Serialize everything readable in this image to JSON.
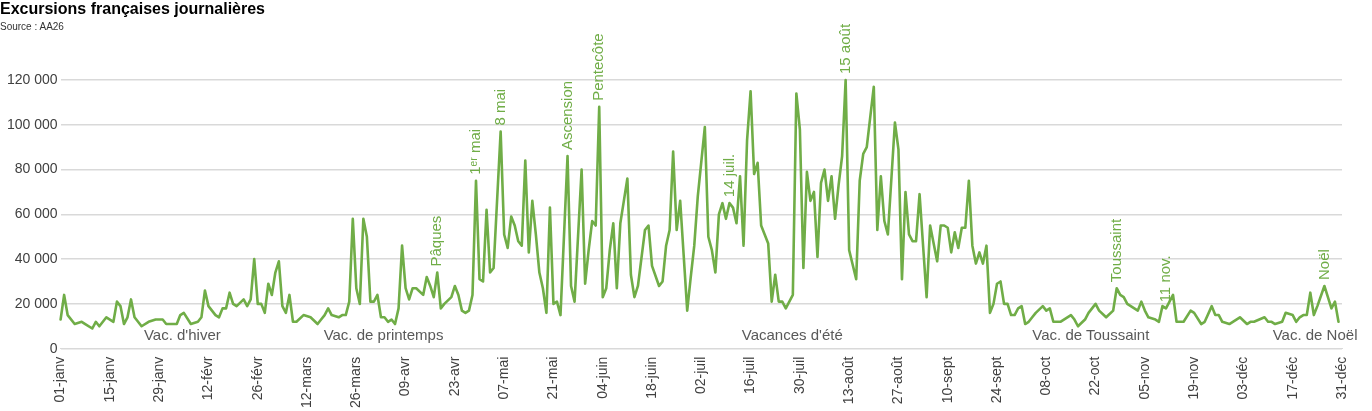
{
  "chart_data": {
    "type": "line",
    "title": "Excursions françaises journalières",
    "annotations": [
      "Source : AA26",
      {
        "text": "Pâques",
        "x": "--04-18",
        "y": 34000
      },
      {
        "text": "1ᵉʳ mai",
        "x": "--04-29",
        "y": 75000
      },
      {
        "text": "8 mai",
        "x": "--05-06",
        "y": 97000
      },
      {
        "text": "Ascension",
        "x": "--05-25",
        "y": 86000
      },
      {
        "text": "Pentecôte",
        "x": "--06-03",
        "y": 108000
      },
      {
        "text": "14 juil.",
        "x": "--07-10",
        "y": 65000
      },
      {
        "text": "15 août",
        "x": "--08-12",
        "y": 120000
      },
      {
        "text": "Toussaint",
        "x": "--10-28",
        "y": 27000
      },
      {
        "text": "11 nov.",
        "x": "--11-11",
        "y": 18000
      },
      {
        "text": "Noël",
        "x": "--12-26",
        "y": 28000
      },
      "Vac. d'hiver",
      "Vac. de printemps",
      "Vacances d'été",
      "Vac. de Toussaint",
      "Vac. de Noël"
    ],
    "x": [
      "--01-01",
      "--01-02",
      "--01-03",
      "--01-05",
      "--01-07",
      "--01-08",
      "--01-10",
      "--01-11",
      "--01-12",
      "--01-14",
      "--01-16",
      "--01-17",
      "--01-18",
      "--01-19",
      "--01-20",
      "--01-21",
      "--01-22",
      "--01-24",
      "--01-26",
      "--01-28",
      "--01-30",
      "--01-31",
      "--02-03",
      "--02-04",
      "--02-05",
      "--02-07",
      "--02-09",
      "--02-10",
      "--02-11",
      "--02-12",
      "--02-14",
      "--02-15",
      "--02-16",
      "--02-17",
      "--02-18",
      "--02-19",
      "--02-20",
      "--02-22",
      "--02-23",
      "--02-24",
      "--02-25",
      "--02-26",
      "--02-27",
      "--02-28",
      "--03-01",
      "--03-02",
      "--03-03",
      "--03-04",
      "--03-05",
      "--03-06",
      "--03-07",
      "--03-08",
      "--03-09",
      "--03-11",
      "--03-13",
      "--03-15",
      "--03-16",
      "--03-17",
      "--03-18",
      "--03-19",
      "--03-21",
      "--03-22",
      "--03-23",
      "--03-24",
      "--03-25",
      "--03-26",
      "--03-27",
      "--03-28",
      "--03-29",
      "--03-30",
      "--03-31",
      "--04-01",
      "--04-02",
      "--04-03",
      "--04-04",
      "--04-05",
      "--04-06",
      "--04-07",
      "--04-08",
      "--04-09",
      "--04-10",
      "--04-11",
      "--04-12",
      "--04-14",
      "--04-15",
      "--04-16",
      "--04-17",
      "--04-18",
      "--04-19",
      "--04-20",
      "--04-22",
      "--04-23",
      "--04-24",
      "--04-25",
      "--04-26",
      "--04-27",
      "--04-28",
      "--04-29",
      "--04-30",
      "--05-01",
      "--05-02",
      "--05-03",
      "--05-04",
      "--05-06",
      "--05-07",
      "--05-08",
      "--05-09",
      "--05-10",
      "--05-11",
      "--05-12",
      "--05-13",
      "--05-14",
      "--05-15",
      "--05-16",
      "--05-17",
      "--05-18",
      "--05-19",
      "--05-20",
      "--05-21",
      "--05-22",
      "--05-23",
      "--05-25",
      "--05-26",
      "--05-27",
      "--05-29",
      "--05-30",
      "--05-31",
      "--06-01",
      "--06-02",
      "--06-03",
      "--06-04",
      "--06-05",
      "--06-06",
      "--06-07",
      "--06-08",
      "--06-09",
      "--06-10",
      "--06-11",
      "--06-12",
      "--06-13",
      "--06-14",
      "--06-16",
      "--06-17",
      "--06-18",
      "--06-20",
      "--06-21",
      "--06-22",
      "--06-23",
      "--06-24",
      "--06-25",
      "--06-26",
      "--06-28",
      "--06-29",
      "--06-30",
      "--07-01",
      "--07-03",
      "--07-04",
      "--07-05",
      "--07-06",
      "--07-07",
      "--07-08",
      "--07-09",
      "--07-10",
      "--07-11",
      "--07-12",
      "--07-13",
      "--07-14",
      "--07-15",
      "--07-16",
      "--07-17",
      "--07-18",
      "--07-19",
      "--07-20",
      "--07-21",
      "--07-22",
      "--07-23",
      "--07-24",
      "--07-25",
      "--07-26",
      "--07-28",
      "--07-29",
      "--07-30",
      "--07-31",
      "--08-01",
      "--08-02",
      "--08-03",
      "--08-04",
      "--08-05",
      "--08-06",
      "--08-07",
      "--08-08",
      "--08-09",
      "--08-10",
      "--08-11",
      "--08-12",
      "--08-13",
      "--08-15",
      "--08-16",
      "--08-17",
      "--08-18",
      "--08-20",
      "--08-21",
      "--08-22",
      "--08-23",
      "--08-24",
      "--08-26",
      "--08-27",
      "--08-28",
      "--08-29",
      "--08-30",
      "--08-31",
      "--09-01",
      "--09-02",
      "--09-04",
      "--09-05",
      "--09-07",
      "--09-08",
      "--09-09",
      "--09-10",
      "--09-11",
      "--09-12",
      "--09-13",
      "--09-14",
      "--09-15",
      "--09-16",
      "--09-17",
      "--09-18",
      "--09-19",
      "--09-20",
      "--09-21",
      "--09-22",
      "--09-23",
      "--09-24",
      "--09-25",
      "--09-26",
      "--09-27",
      "--09-28",
      "--09-29",
      "--09-30",
      "--10-01",
      "--10-02",
      "--10-03",
      "--10-04",
      "--10-05",
      "--10-07",
      "--10-08",
      "--10-09",
      "--10-10",
      "--10-12",
      "--10-13",
      "--10-15",
      "--10-16",
      "--10-17",
      "--10-19",
      "--10-20",
      "--10-22",
      "--10-23",
      "--10-25",
      "--10-27",
      "--10-28",
      "--10-29",
      "--10-30",
      "--10-31",
      "--11-02",
      "--11-03",
      "--11-04",
      "--11-05",
      "--11-06",
      "--11-08",
      "--11-09",
      "--11-10",
      "--11-11",
      "--11-13",
      "--11-14",
      "--11-15",
      "--11-16",
      "--11-18",
      "--11-19",
      "--11-21",
      "--11-22",
      "--11-24",
      "--11-25",
      "--11-26",
      "--11-27",
      "--11-29",
      "--11-30",
      "--12-02",
      "--12-04",
      "--12-05",
      "--12-06",
      "--12-09",
      "--12-10",
      "--12-11",
      "--12-12",
      "--12-14",
      "--12-15",
      "--12-17",
      "--12-18",
      "--12-19",
      "--12-20",
      "--12-21",
      "--12-22",
      "--12-23",
      "--12-24",
      "--12-26",
      "--12-27",
      "--12-28",
      "--12-29",
      "--12-30"
    ],
    "values": [
      13000,
      24000,
      15000,
      11000,
      12000,
      11000,
      9000,
      12000,
      10000,
      14000,
      12000,
      21000,
      19000,
      11000,
      14000,
      22000,
      14000,
      10000,
      12000,
      13000,
      13000,
      11000,
      11000,
      15000,
      16000,
      11000,
      12000,
      14000,
      26000,
      19000,
      15000,
      14000,
      18000,
      18000,
      25000,
      20000,
      19000,
      22000,
      19000,
      22000,
      40000,
      20000,
      20000,
      16000,
      29000,
      24000,
      34000,
      39000,
      19000,
      16000,
      24000,
      12000,
      12000,
      15000,
      14000,
      11000,
      13000,
      15000,
      18000,
      15000,
      14000,
      15000,
      15000,
      21000,
      58000,
      27000,
      20000,
      58000,
      50000,
      21000,
      21000,
      24000,
      14000,
      14000,
      12000,
      13000,
      11000,
      18000,
      46000,
      27000,
      22000,
      27000,
      27000,
      24000,
      32000,
      28000,
      23000,
      34000,
      18000,
      20000,
      23000,
      28000,
      24000,
      17000,
      16000,
      17000,
      24000,
      75000,
      31000,
      30000,
      62000,
      34000,
      36000,
      97000,
      51000,
      45000,
      59000,
      55000,
      48000,
      46000,
      84000,
      43000,
      66000,
      51000,
      34000,
      27000,
      16000,
      63000,
      20000,
      21000,
      15000,
      86000,
      28000,
      21000,
      80000,
      29000,
      44000,
      57000,
      55000,
      108000,
      23000,
      27000,
      44000,
      56000,
      27000,
      56000,
      66000,
      76000,
      33000,
      23000,
      28000,
      53000,
      55000,
      37000,
      28000,
      30000,
      46000,
      53000,
      88000,
      53000,
      66000,
      17000,
      32000,
      46000,
      68000,
      99000,
      50000,
      44000,
      34000,
      60000,
      65000,
      58000,
      65000,
      63000,
      56000,
      77000,
      46000,
      93000,
      115000,
      78000,
      83000,
      55000,
      51000,
      47000,
      21000,
      33000,
      21000,
      21000,
      18000,
      24000,
      114000,
      98000,
      36000,
      79000,
      66000,
      70000,
      41000,
      74000,
      80000,
      66000,
      77000,
      58000,
      73000,
      86000,
      120000,
      44000,
      31000,
      75000,
      87000,
      90000,
      117000,
      53000,
      77000,
      57000,
      51000,
      101000,
      89000,
      31000,
      70000,
      51000,
      48000,
      48000,
      69000,
      23000,
      55000,
      39000,
      55000,
      55000,
      54000,
      43000,
      52000,
      45000,
      54000,
      54000,
      75000,
      46000,
      38000,
      43000,
      38000,
      46000,
      16000,
      20000,
      29000,
      30000,
      20000,
      20000,
      15000,
      15000,
      18000,
      19000,
      11000,
      12000,
      14000,
      16000,
      19000,
      17000,
      18000,
      12000,
      12000,
      13000,
      15000,
      13000,
      10000,
      13000,
      16000,
      20000,
      17000,
      14000,
      17000,
      27000,
      24000,
      23000,
      20000,
      18000,
      17000,
      21000,
      17000,
      14000,
      13000,
      12000,
      19000,
      18000,
      24000,
      12000,
      12000,
      12000,
      17000,
      16000,
      11000,
      12000,
      19000,
      15000,
      15000,
      12000,
      11000,
      12000,
      14000,
      11000,
      12000,
      12000,
      14000,
      12000,
      12000,
      11000,
      12000,
      16000,
      15000,
      12000,
      14000,
      15000,
      15000,
      25000,
      15000,
      19000,
      28000,
      23000,
      18000,
      21000,
      12000
    ],
    "color": "#70ad47",
    "line_style": "solid",
    "grid": "y",
    "xlim": [
      "--01-01",
      "--12-31"
    ],
    "xticks": [
      {
        "value": "--01-01",
        "label": "01-janv"
      },
      {
        "value": "--01-15",
        "label": "15-janv"
      },
      {
        "value": "--01-29",
        "label": "29-janv"
      },
      {
        "value": "--02-12",
        "label": "12-févr"
      },
      {
        "value": "--02-26",
        "label": "26-févr"
      },
      {
        "value": "--03-12",
        "label": "12-mars"
      },
      {
        "value": "--03-26",
        "label": "26-mars"
      },
      {
        "value": "--04-09",
        "label": "09-avr"
      },
      {
        "value": "--04-23",
        "label": "23-avr"
      },
      {
        "value": "--05-07",
        "label": "07-mai"
      },
      {
        "value": "--05-21",
        "label": "21-mai"
      },
      {
        "value": "--06-04",
        "label": "04-juin"
      },
      {
        "value": "--06-18",
        "label": "18-juin"
      },
      {
        "value": "--07-02",
        "label": "02-juil"
      },
      {
        "value": "--07-16",
        "label": "16-juil"
      },
      {
        "value": "--07-30",
        "label": "30-juil"
      },
      {
        "value": "--08-13",
        "label": "13-août"
      },
      {
        "value": "--08-27",
        "label": "27-août"
      },
      {
        "value": "--09-10",
        "label": "10-sept"
      },
      {
        "value": "--09-24",
        "label": "24-sept"
      },
      {
        "value": "--10-08",
        "label": "08-oct"
      },
      {
        "value": "--10-22",
        "label": "22-oct"
      },
      {
        "value": "--11-05",
        "label": "05-nov"
      },
      {
        "value": "--11-19",
        "label": "19-nov"
      },
      {
        "value": "--12-03",
        "label": "03-déc"
      },
      {
        "value": "--12-17",
        "label": "17-déc"
      },
      {
        "value": "--12-31",
        "label": "31-déc"
      }
    ],
    "ylim": [
      0,
      120000
    ],
    "yticks": [
      0,
      {
        "value": 20000,
        "label": "20 000"
      },
      {
        "value": 40000,
        "label": "40 000"
      },
      {
        "value": 60000,
        "label": "60 000"
      },
      {
        "value": 80000,
        "label": "80 000"
      },
      {
        "value": 100000,
        "label": "100 000"
      },
      {
        "value": 120000,
        "label": "120 000"
      }
    ]
  }
}
